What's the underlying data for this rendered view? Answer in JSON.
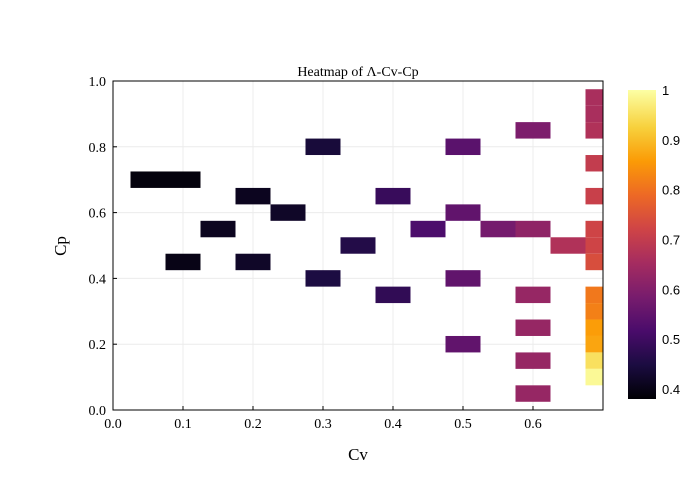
{
  "chart_data": {
    "type": "heatmap",
    "title": "Heatmap of Λ-Cv-Cp",
    "xlabel": "Cv",
    "ylabel": "Cp",
    "xlim": [
      0,
      0.7
    ],
    "ylim": [
      0,
      1.0
    ],
    "x_ticks": [
      "0.0",
      "0.1",
      "0.2",
      "0.3",
      "0.4",
      "0.5",
      "0.6"
    ],
    "y_ticks": [
      "0.0",
      "0.2",
      "0.4",
      "0.6",
      "0.8",
      "1.0"
    ],
    "grid": true,
    "colorscale": "Inferno",
    "colorbar": {
      "range": [
        0.38,
        1.0
      ],
      "ticks": [
        "0.4",
        "0.5",
        "0.6",
        "0.7",
        "0.8",
        "0.9",
        "1"
      ]
    },
    "cell_size": {
      "dx": 0.05,
      "dy": 0.05
    },
    "cells": [
      {
        "cv": 0.05,
        "cp": 0.7,
        "value": 0.39
      },
      {
        "cv": 0.1,
        "cp": 0.7,
        "value": 0.39
      },
      {
        "cv": 0.1,
        "cp": 0.45,
        "value": 0.4
      },
      {
        "cv": 0.15,
        "cp": 0.55,
        "value": 0.41
      },
      {
        "cv": 0.2,
        "cp": 0.65,
        "value": 0.41
      },
      {
        "cv": 0.2,
        "cp": 0.45,
        "value": 0.42
      },
      {
        "cv": 0.25,
        "cp": 0.6,
        "value": 0.42
      },
      {
        "cv": 0.3,
        "cp": 0.8,
        "value": 0.44
      },
      {
        "cv": 0.3,
        "cp": 0.4,
        "value": 0.45
      },
      {
        "cv": 0.35,
        "cp": 0.5,
        "value": 0.46
      },
      {
        "cv": 0.4,
        "cp": 0.65,
        "value": 0.49
      },
      {
        "cv": 0.4,
        "cp": 0.35,
        "value": 0.48
      },
      {
        "cv": 0.45,
        "cp": 0.55,
        "value": 0.52
      },
      {
        "cv": 0.5,
        "cp": 0.8,
        "value": 0.54
      },
      {
        "cv": 0.5,
        "cp": 0.6,
        "value": 0.55
      },
      {
        "cv": 0.5,
        "cp": 0.4,
        "value": 0.55
      },
      {
        "cv": 0.5,
        "cp": 0.2,
        "value": 0.55
      },
      {
        "cv": 0.55,
        "cp": 0.55,
        "value": 0.58
      },
      {
        "cv": 0.6,
        "cp": 0.85,
        "value": 0.59
      },
      {
        "cv": 0.6,
        "cp": 0.55,
        "value": 0.62
      },
      {
        "cv": 0.6,
        "cp": 0.35,
        "value": 0.63
      },
      {
        "cv": 0.6,
        "cp": 0.25,
        "value": 0.63
      },
      {
        "cv": 0.6,
        "cp": 0.15,
        "value": 0.63
      },
      {
        "cv": 0.6,
        "cp": 0.05,
        "value": 0.63
      },
      {
        "cv": 0.65,
        "cp": 0.5,
        "value": 0.67
      },
      {
        "cv": 0.7,
        "cp": 0.95,
        "value": 0.66
      },
      {
        "cv": 0.7,
        "cp": 0.9,
        "value": 0.66
      },
      {
        "cv": 0.7,
        "cp": 0.85,
        "value": 0.67
      },
      {
        "cv": 0.7,
        "cp": 0.75,
        "value": 0.7
      },
      {
        "cv": 0.7,
        "cp": 0.65,
        "value": 0.71
      },
      {
        "cv": 0.7,
        "cp": 0.55,
        "value": 0.72
      },
      {
        "cv": 0.7,
        "cp": 0.5,
        "value": 0.72
      },
      {
        "cv": 0.7,
        "cp": 0.45,
        "value": 0.74
      },
      {
        "cv": 0.7,
        "cp": 0.35,
        "value": 0.81
      },
      {
        "cv": 0.7,
        "cp": 0.3,
        "value": 0.82
      },
      {
        "cv": 0.7,
        "cp": 0.25,
        "value": 0.86
      },
      {
        "cv": 0.7,
        "cp": 0.2,
        "value": 0.87
      },
      {
        "cv": 0.7,
        "cp": 0.15,
        "value": 0.95
      },
      {
        "cv": 0.7,
        "cp": 0.1,
        "value": 0.99
      }
    ]
  }
}
